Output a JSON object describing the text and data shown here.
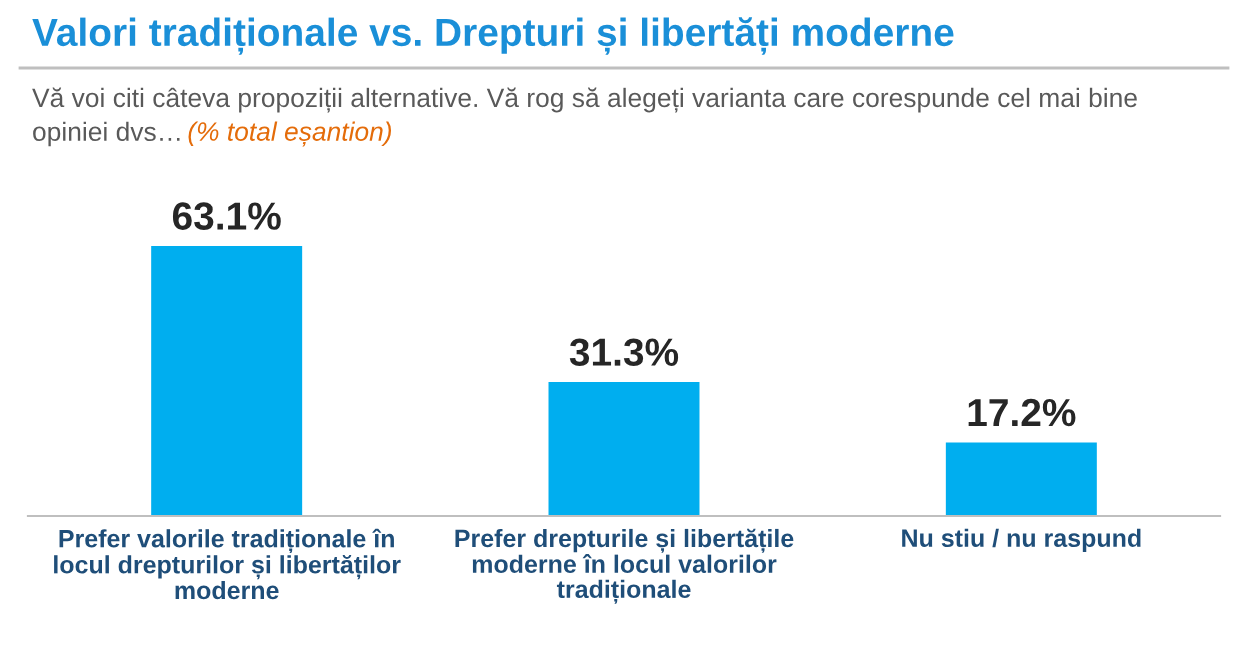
{
  "chart_data": {
    "type": "bar",
    "title": "Valori tradiționale vs. Drepturi și libertăți moderne",
    "subtitle": "Vă voi citi câteva propoziții alternative. Vă rog să alegeți varianta care corespunde cel mai bine opiniei dvs…",
    "annotations": [
      "(% total eșantion)"
    ],
    "categories": [
      "Prefer valorile tradiționale în locul drepturilor și libertăților moderne",
      "Prefer drepturile și libertățile moderne în locul valorilor tradiționale",
      "Nu stiu / nu raspund"
    ],
    "values": [
      63.1,
      31.3,
      17.2
    ],
    "value_labels": [
      "63.1%",
      "31.3%",
      "17.2%"
    ],
    "color": "#00aeef"
  }
}
